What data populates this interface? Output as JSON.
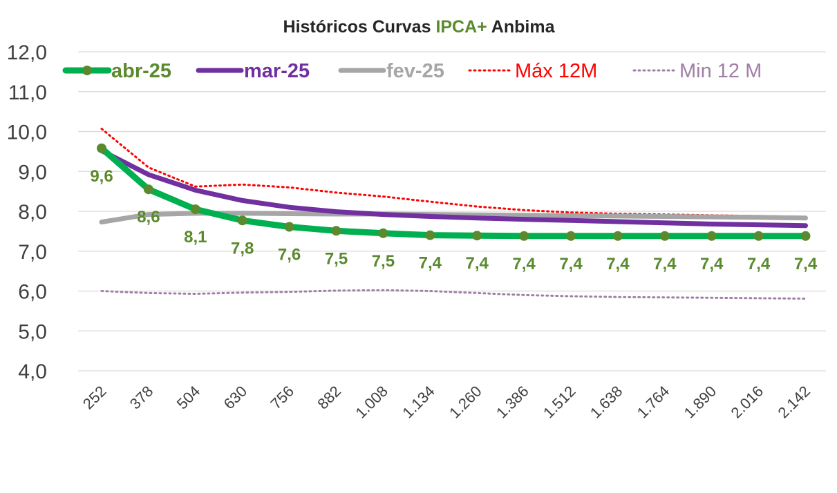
{
  "chart_data": {
    "type": "line",
    "title_parts": [
      {
        "text": "Históricos Curvas ",
        "color": "#262626"
      },
      {
        "text": "IPCA+",
        "color": "#5A8A2E"
      },
      {
        "text": " Anbima",
        "color": "#262626"
      }
    ],
    "x": [
      "252",
      "378",
      "504",
      "630",
      "756",
      "882",
      "1.008",
      "1.134",
      "1.260",
      "1.386",
      "1.512",
      "1.638",
      "1.764",
      "1.890",
      "2.016",
      "2.142"
    ],
    "ylim": [
      4.0,
      12.0
    ],
    "yticks": [
      "4,0",
      "5,0",
      "6,0",
      "7,0",
      "8,0",
      "9,0",
      "10,0",
      "11,0",
      "12,0"
    ],
    "grid": true,
    "legend_position": "top",
    "series": [
      {
        "name": "abr-25",
        "color": "#00B050",
        "marker_color": "#5A8A2E",
        "label_color": "#5A8A2E",
        "style": "solid-marker",
        "values": [
          9.58,
          8.55,
          8.05,
          7.77,
          7.61,
          7.51,
          7.45,
          7.4,
          7.39,
          7.38,
          7.38,
          7.38,
          7.38,
          7.38,
          7.38,
          7.38
        ],
        "labels": [
          "9,6",
          "8,6",
          "8,1",
          "7,8",
          "7,6",
          "7,5",
          "7,5",
          "7,4",
          "7,4",
          "7,4",
          "7,4",
          "7,4",
          "7,4",
          "7,4",
          "7,4",
          "7,4"
        ]
      },
      {
        "name": "mar-25",
        "color": "#7030A0",
        "style": "solid",
        "values": [
          9.52,
          8.92,
          8.53,
          8.27,
          8.1,
          7.99,
          7.92,
          7.87,
          7.83,
          7.8,
          7.77,
          7.74,
          7.71,
          7.68,
          7.66,
          7.64
        ]
      },
      {
        "name": "fev-25",
        "color": "#A6A6A6",
        "style": "solid",
        "values": [
          7.73,
          7.92,
          7.95,
          7.95,
          7.94,
          7.93,
          7.93,
          7.92,
          7.91,
          7.9,
          7.89,
          7.88,
          7.87,
          7.86,
          7.85,
          7.83
        ]
      },
      {
        "name": "Máx 12M",
        "color": "#FF0000",
        "style": "dotted",
        "values": [
          10.07,
          9.1,
          8.62,
          8.67,
          8.6,
          8.47,
          8.37,
          8.24,
          8.12,
          8.03,
          7.97,
          7.94,
          7.92,
          7.9,
          7.88,
          7.86
        ]
      },
      {
        "name": "Min 12 M",
        "color": "#A07FA6",
        "style": "dotted",
        "values": [
          6.0,
          5.95,
          5.93,
          5.96,
          5.98,
          6.01,
          6.02,
          6.0,
          5.95,
          5.9,
          5.87,
          5.85,
          5.84,
          5.83,
          5.82,
          5.81
        ]
      }
    ]
  }
}
